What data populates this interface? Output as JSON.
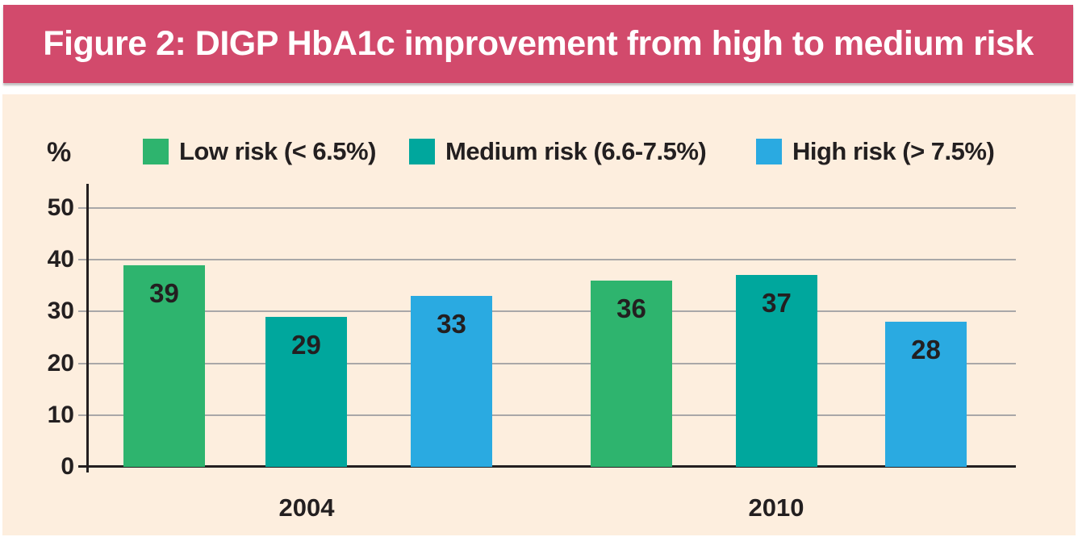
{
  "header": {
    "title": "Figure 2: DIGP HbA1c improvement from high to medium risk"
  },
  "colors": {
    "header_bg": "#d24a6c",
    "title_text": "#ffffff",
    "chart_bg": "#fdeede",
    "text_dark": "#231f20",
    "gridline": "#a9a7a8",
    "low_risk_green": "#2eb46e",
    "medium_risk_teal": "#00a79d",
    "high_risk_blue": "#2aaae1"
  },
  "chart_data": {
    "type": "bar",
    "title": "Figure 2: DIGP HbA1c improvement from high to medium risk",
    "ylabel": "%",
    "xlabel": "",
    "ylim": [
      0,
      50
    ],
    "yticks": [
      0,
      10,
      20,
      30,
      40,
      50
    ],
    "grid": "horizontal",
    "legend_position": "top",
    "categories": [
      "2004",
      "2010"
    ],
    "series": [
      {
        "key": "low-risk",
        "name": "Low risk (< 6.5%)",
        "color": "#2eb46e",
        "values": [
          39,
          36
        ]
      },
      {
        "key": "medium-risk",
        "name": "Medium risk (6.6-7.5%)",
        "color": "#00a79d",
        "values": [
          29,
          37
        ]
      },
      {
        "key": "high-risk",
        "name": "High risk (> 7.5%)",
        "color": "#2aaae1",
        "values": [
          33,
          28
        ]
      }
    ]
  }
}
